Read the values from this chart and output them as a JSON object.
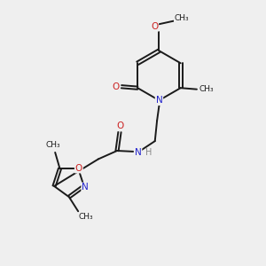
{
  "bg_color": "#efefef",
  "atom_color_N": "#2222cc",
  "atom_color_O": "#cc2222",
  "atom_color_H": "#888888",
  "bond_color": "#1a1a1a",
  "bond_width": 1.4,
  "dbo": 0.055,
  "figsize": [
    3.0,
    3.0
  ],
  "dpi": 100,
  "xlim": [
    0,
    10
  ],
  "ylim": [
    0,
    10
  ]
}
